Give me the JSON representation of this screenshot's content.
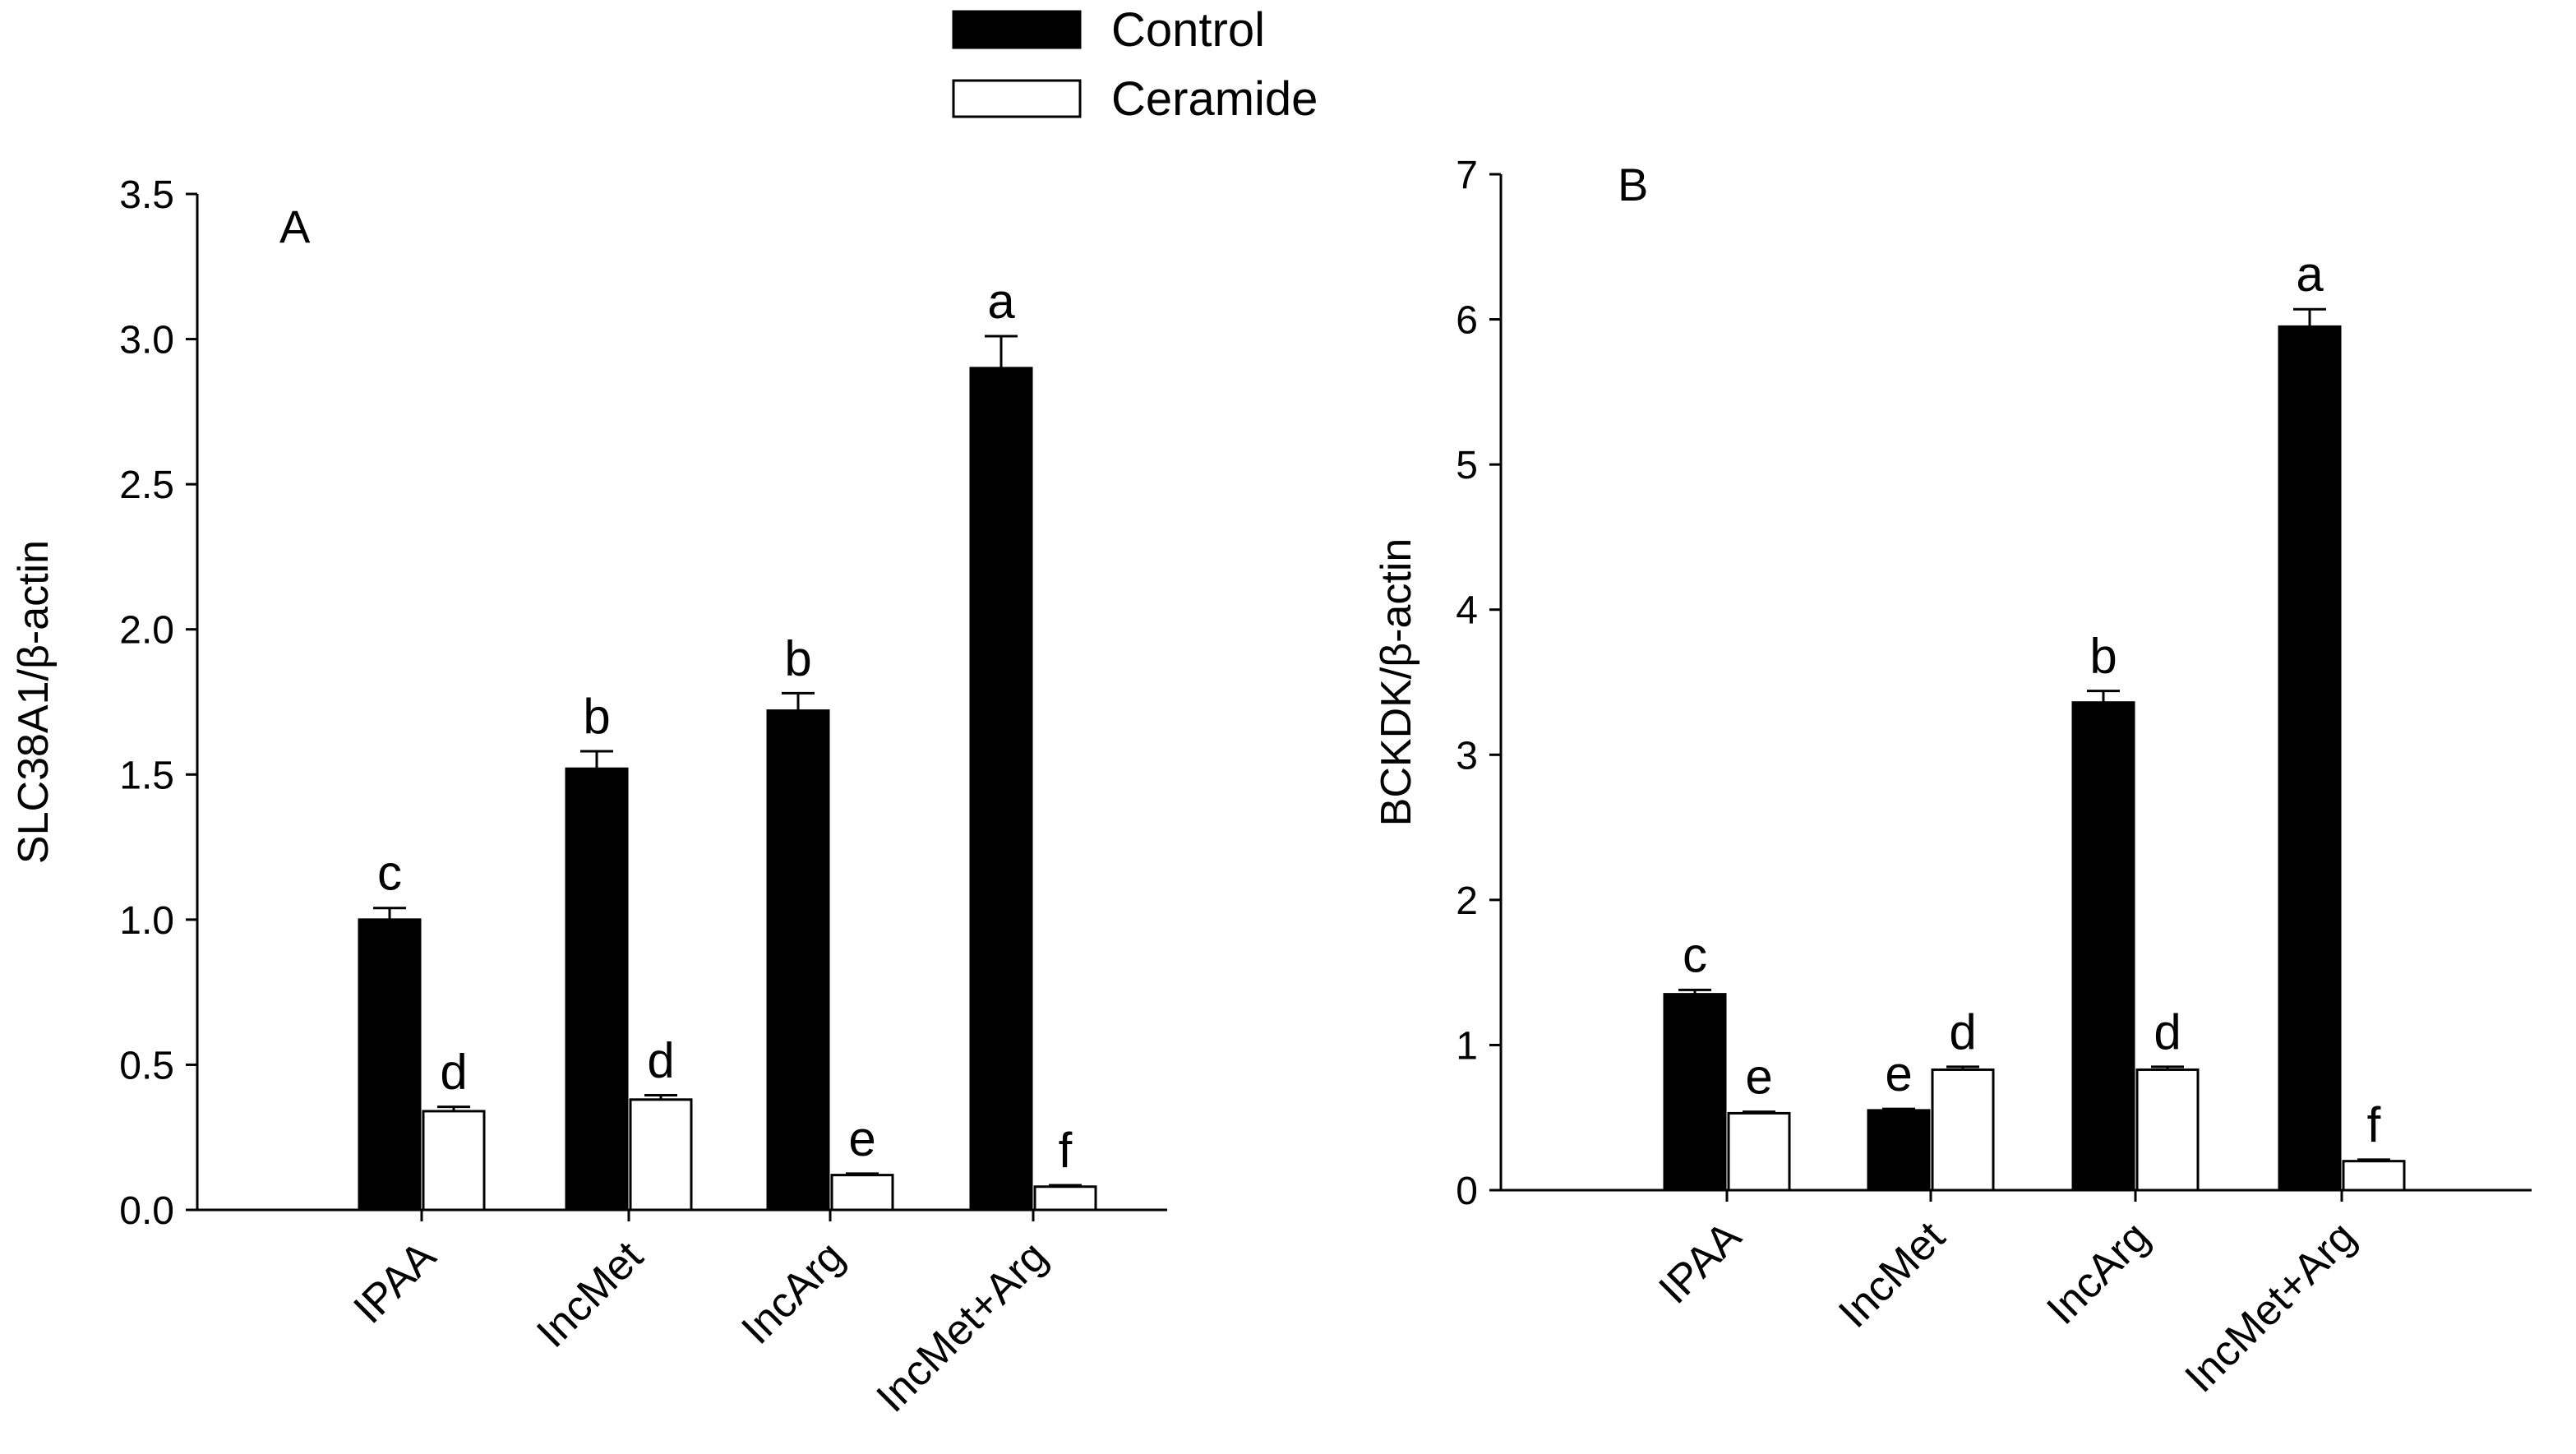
{
  "legend": {
    "items": [
      {
        "label": "Control",
        "color": "#000000"
      },
      {
        "label": "Ceramide",
        "color": "#ffffff"
      }
    ]
  },
  "chart_data": [
    {
      "type": "bar",
      "panel": "A",
      "ylabel": "SLC38A1/β-actin",
      "xlabel": "",
      "categories": [
        "IPAA",
        "IncMet",
        "IncArg",
        "IncMet+Arg"
      ],
      "ylim": [
        0,
        3.5
      ],
      "yticks": [
        0.0,
        0.5,
        1.0,
        1.5,
        2.0,
        2.5,
        3.0,
        3.5
      ],
      "ytick_labels": [
        "0.0",
        "0.5",
        "1.0",
        "1.5",
        "2.0",
        "2.5",
        "3.0",
        "3.5"
      ],
      "series": [
        {
          "name": "Control",
          "values": [
            1.0,
            1.52,
            1.72,
            2.9
          ],
          "errors": [
            0.04,
            0.06,
            0.06,
            0.11
          ],
          "labels": [
            "c",
            "b",
            "b",
            "a"
          ]
        },
        {
          "name": "Ceramide",
          "values": [
            0.34,
            0.38,
            0.12,
            0.08
          ],
          "errors": [
            0.015,
            0.015,
            0.005,
            0.005
          ],
          "labels": [
            "d",
            "d",
            "e",
            "f"
          ]
        }
      ]
    },
    {
      "type": "bar",
      "panel": "B",
      "ylabel": "BCKDK/β-actin",
      "xlabel": "",
      "categories": [
        "IPAA",
        "IncMet",
        "IncArg",
        "IncMet+Arg"
      ],
      "ylim": [
        0,
        7
      ],
      "yticks": [
        0,
        1,
        2,
        3,
        4,
        5,
        6,
        7
      ],
      "ytick_labels": [
        "0",
        "1",
        "2",
        "3",
        "4",
        "5",
        "6",
        "7"
      ],
      "series": [
        {
          "name": "Control",
          "values": [
            1.35,
            0.55,
            3.36,
            5.95
          ],
          "errors": [
            0.03,
            0.01,
            0.08,
            0.12
          ],
          "labels": [
            "c",
            "e",
            "b",
            "a"
          ]
        },
        {
          "name": "Ceramide",
          "values": [
            0.53,
            0.83,
            0.83,
            0.2
          ],
          "errors": [
            0.01,
            0.02,
            0.02,
            0.01
          ],
          "labels": [
            "e",
            "d",
            "d",
            "f"
          ]
        }
      ]
    }
  ]
}
